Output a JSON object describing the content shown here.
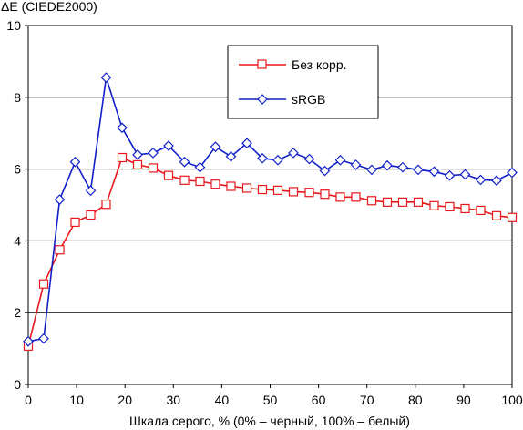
{
  "chart_data": {
    "type": "line",
    "title": "",
    "ylabel": "ΔE (CIEDE2000)",
    "xlabel": "Шкала серого, % (0% – черный, 100% – белый)",
    "xlim": [
      0,
      100
    ],
    "ylim": [
      0,
      10
    ],
    "x_ticks": [
      "0",
      "10",
      "20",
      "30",
      "40",
      "50",
      "60",
      "70",
      "80",
      "90",
      "100"
    ],
    "y_ticks": [
      "0",
      "2",
      "4",
      "6",
      "8",
      "10"
    ],
    "grid": "horizontal",
    "legend_position": "top-right",
    "series": [
      {
        "name": "Без корр.",
        "color": "#e8171c",
        "marker": "square",
        "x": [
          0,
          3.2,
          6.5,
          9.7,
          12.9,
          16.1,
          19.4,
          22.6,
          25.8,
          29.0,
          32.3,
          35.5,
          38.7,
          41.9,
          45.2,
          48.4,
          51.6,
          54.8,
          58.1,
          61.3,
          64.5,
          67.7,
          71.0,
          74.2,
          77.4,
          80.6,
          83.9,
          87.1,
          90.3,
          93.5,
          96.8,
          100
        ],
        "values": [
          1.07,
          2.8,
          3.75,
          4.52,
          4.72,
          5.02,
          6.32,
          6.12,
          6.03,
          5.82,
          5.69,
          5.66,
          5.58,
          5.52,
          5.47,
          5.43,
          5.41,
          5.37,
          5.35,
          5.3,
          5.22,
          5.22,
          5.12,
          5.08,
          5.08,
          5.08,
          4.98,
          4.95,
          4.9,
          4.85,
          4.7,
          4.65
        ]
      },
      {
        "name": "sRGB",
        "color": "#1020c8",
        "marker": "diamond",
        "x": [
          0,
          3.2,
          6.5,
          9.7,
          12.9,
          16.1,
          19.4,
          22.6,
          25.8,
          29.0,
          32.3,
          35.5,
          38.7,
          41.9,
          45.2,
          48.4,
          51.6,
          54.8,
          58.1,
          61.3,
          64.5,
          67.7,
          71.0,
          74.2,
          77.4,
          80.6,
          83.9,
          87.1,
          90.3,
          93.5,
          96.8,
          100
        ],
        "values": [
          1.2,
          1.28,
          5.15,
          6.2,
          5.4,
          8.55,
          7.15,
          6.4,
          6.45,
          6.65,
          6.2,
          6.05,
          6.62,
          6.35,
          6.72,
          6.3,
          6.25,
          6.45,
          6.28,
          5.95,
          6.25,
          6.12,
          5.98,
          6.1,
          6.05,
          5.98,
          5.93,
          5.82,
          5.85,
          5.7,
          5.68,
          5.9
        ]
      }
    ]
  }
}
